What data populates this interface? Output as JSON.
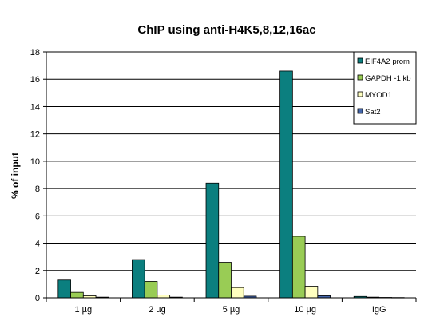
{
  "chart_data": {
    "type": "bar",
    "title": "ChIP using anti-H4K5,8,12,16ac",
    "xlabel": "",
    "ylabel": "% of input",
    "ylim": [
      0,
      18
    ],
    "yticks": [
      0,
      2,
      4,
      6,
      8,
      10,
      12,
      14,
      16,
      18
    ],
    "categories": [
      "1 µg",
      "2 µg",
      "5 µg",
      "10 µg",
      "IgG"
    ],
    "grid": true,
    "legend_position": "top-right",
    "series": [
      {
        "name": "EIF4A2 prom",
        "color": "#0b7f7f",
        "values": [
          1.3,
          2.8,
          8.4,
          16.6,
          0.1
        ]
      },
      {
        "name": "GAPDH -1 kb",
        "color": "#99cc55",
        "values": [
          0.4,
          1.2,
          2.6,
          4.5,
          0.05
        ]
      },
      {
        "name": "MYOD1",
        "color": "#ffffc0",
        "values": [
          0.15,
          0.2,
          0.75,
          0.85,
          0.03
        ]
      },
      {
        "name": "Sat2",
        "color": "#4466aa",
        "values": [
          0.05,
          0.05,
          0.12,
          0.15,
          0.02
        ]
      }
    ]
  }
}
